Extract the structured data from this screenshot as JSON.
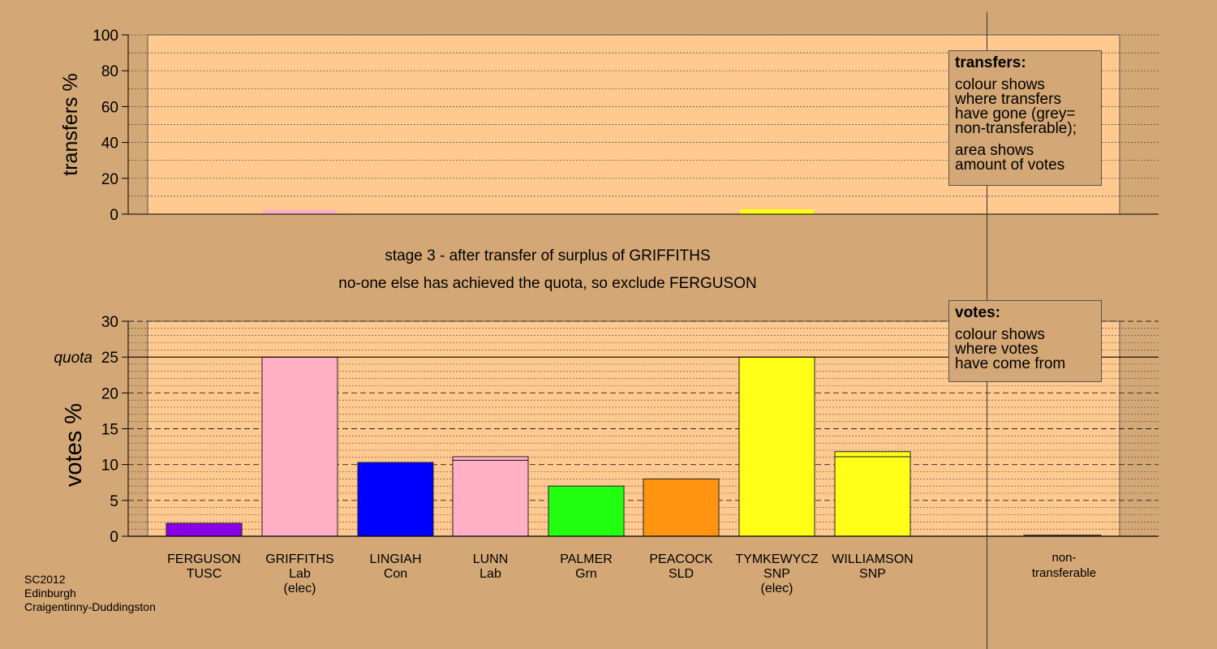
{
  "chart_data": [
    {
      "type": "bar",
      "ylabel": "transfers %",
      "ylim": [
        0,
        100
      ],
      "yticks": [
        0,
        20,
        40,
        60,
        80,
        100
      ],
      "minor_gridlines_every": 10,
      "categories": [
        "FERGUSON",
        "GRIFFITHS",
        "LINGIAH",
        "LUNN",
        "PALMER",
        "PEACOCK",
        "TYMKEWYCZ",
        "WILLIAMSON",
        "non-transferable"
      ],
      "values": [
        0,
        2.4,
        0,
        0,
        0,
        0,
        2.7,
        0,
        0
      ],
      "colors": [
        "#8a00e6",
        "#ffb0c4",
        "#0000ff",
        "#ffb0c4",
        "#22ff11",
        "#ff9410",
        "#ffff17",
        "#ffff17",
        "#888888"
      ]
    },
    {
      "type": "bar",
      "stacked": true,
      "ylabel": "votes %",
      "ylim": [
        0,
        30
      ],
      "yticks": [
        0,
        5,
        10,
        15,
        20,
        25,
        30
      ],
      "minor_gridlines_every": 1,
      "quota": 25,
      "quota_label": "quota",
      "candidates": [
        {
          "name": "FERGUSON",
          "party": "TUSC",
          "elected": ""
        },
        {
          "name": "GRIFFITHS",
          "party": "Lab",
          "elected": "(elec)"
        },
        {
          "name": "LINGIAH",
          "party": "Con",
          "elected": ""
        },
        {
          "name": "LUNN",
          "party": "Lab",
          "elected": ""
        },
        {
          "name": "PALMER",
          "party": "Grn",
          "elected": ""
        },
        {
          "name": "PEACOCK",
          "party": "SLD",
          "elected": ""
        },
        {
          "name": "TYMKEWYCZ",
          "party": "SNP",
          "elected": "(elec)"
        },
        {
          "name": "WILLIAMSON",
          "party": "SNP",
          "elected": ""
        }
      ],
      "non_transferable_label": [
        "non-",
        "transferable"
      ],
      "stacks": [
        [
          {
            "value": 1.8,
            "color": "#8a00e6"
          }
        ],
        [
          {
            "value": 25.0,
            "color": "#ffb0c4"
          }
        ],
        [
          {
            "value": 10.3,
            "color": "#0000ff"
          }
        ],
        [
          {
            "value": 10.6,
            "color": "#ffb0c4"
          },
          {
            "value": 0.5,
            "color": "#ffb0c4"
          }
        ],
        [
          {
            "value": 7.0,
            "color": "#22ff11"
          }
        ],
        [
          {
            "value": 8.0,
            "color": "#ff9410"
          }
        ],
        [
          {
            "value": 25.0,
            "color": "#ffff17"
          }
        ],
        [
          {
            "value": 11.1,
            "color": "#ffff17"
          },
          {
            "value": 0.7,
            "color": "#ffff17"
          }
        ]
      ],
      "non_transferable_value": 0.15
    }
  ],
  "stage_title": "stage 3 - after transfer of surplus of GRIFFITHS",
  "stage_subtitle": "no-one else has achieved the quota, so exclude FERGUSON",
  "legend_transfers": {
    "title": "transfers:",
    "para1": [
      "colour shows",
      "where transfers",
      "have gone (grey=",
      "non-transferable);"
    ],
    "para2": [
      "area shows",
      "amount of votes"
    ]
  },
  "legend_votes": {
    "title": "votes:",
    "para1": [
      "colour shows",
      "where votes",
      "have come from"
    ]
  },
  "source": [
    "SC2012",
    "Edinburgh",
    "Craigentinny-Duddingston"
  ],
  "colors": {
    "background": "#d4a876",
    "plot_background": "#ffc98f",
    "non_transferable": "#888888"
  }
}
